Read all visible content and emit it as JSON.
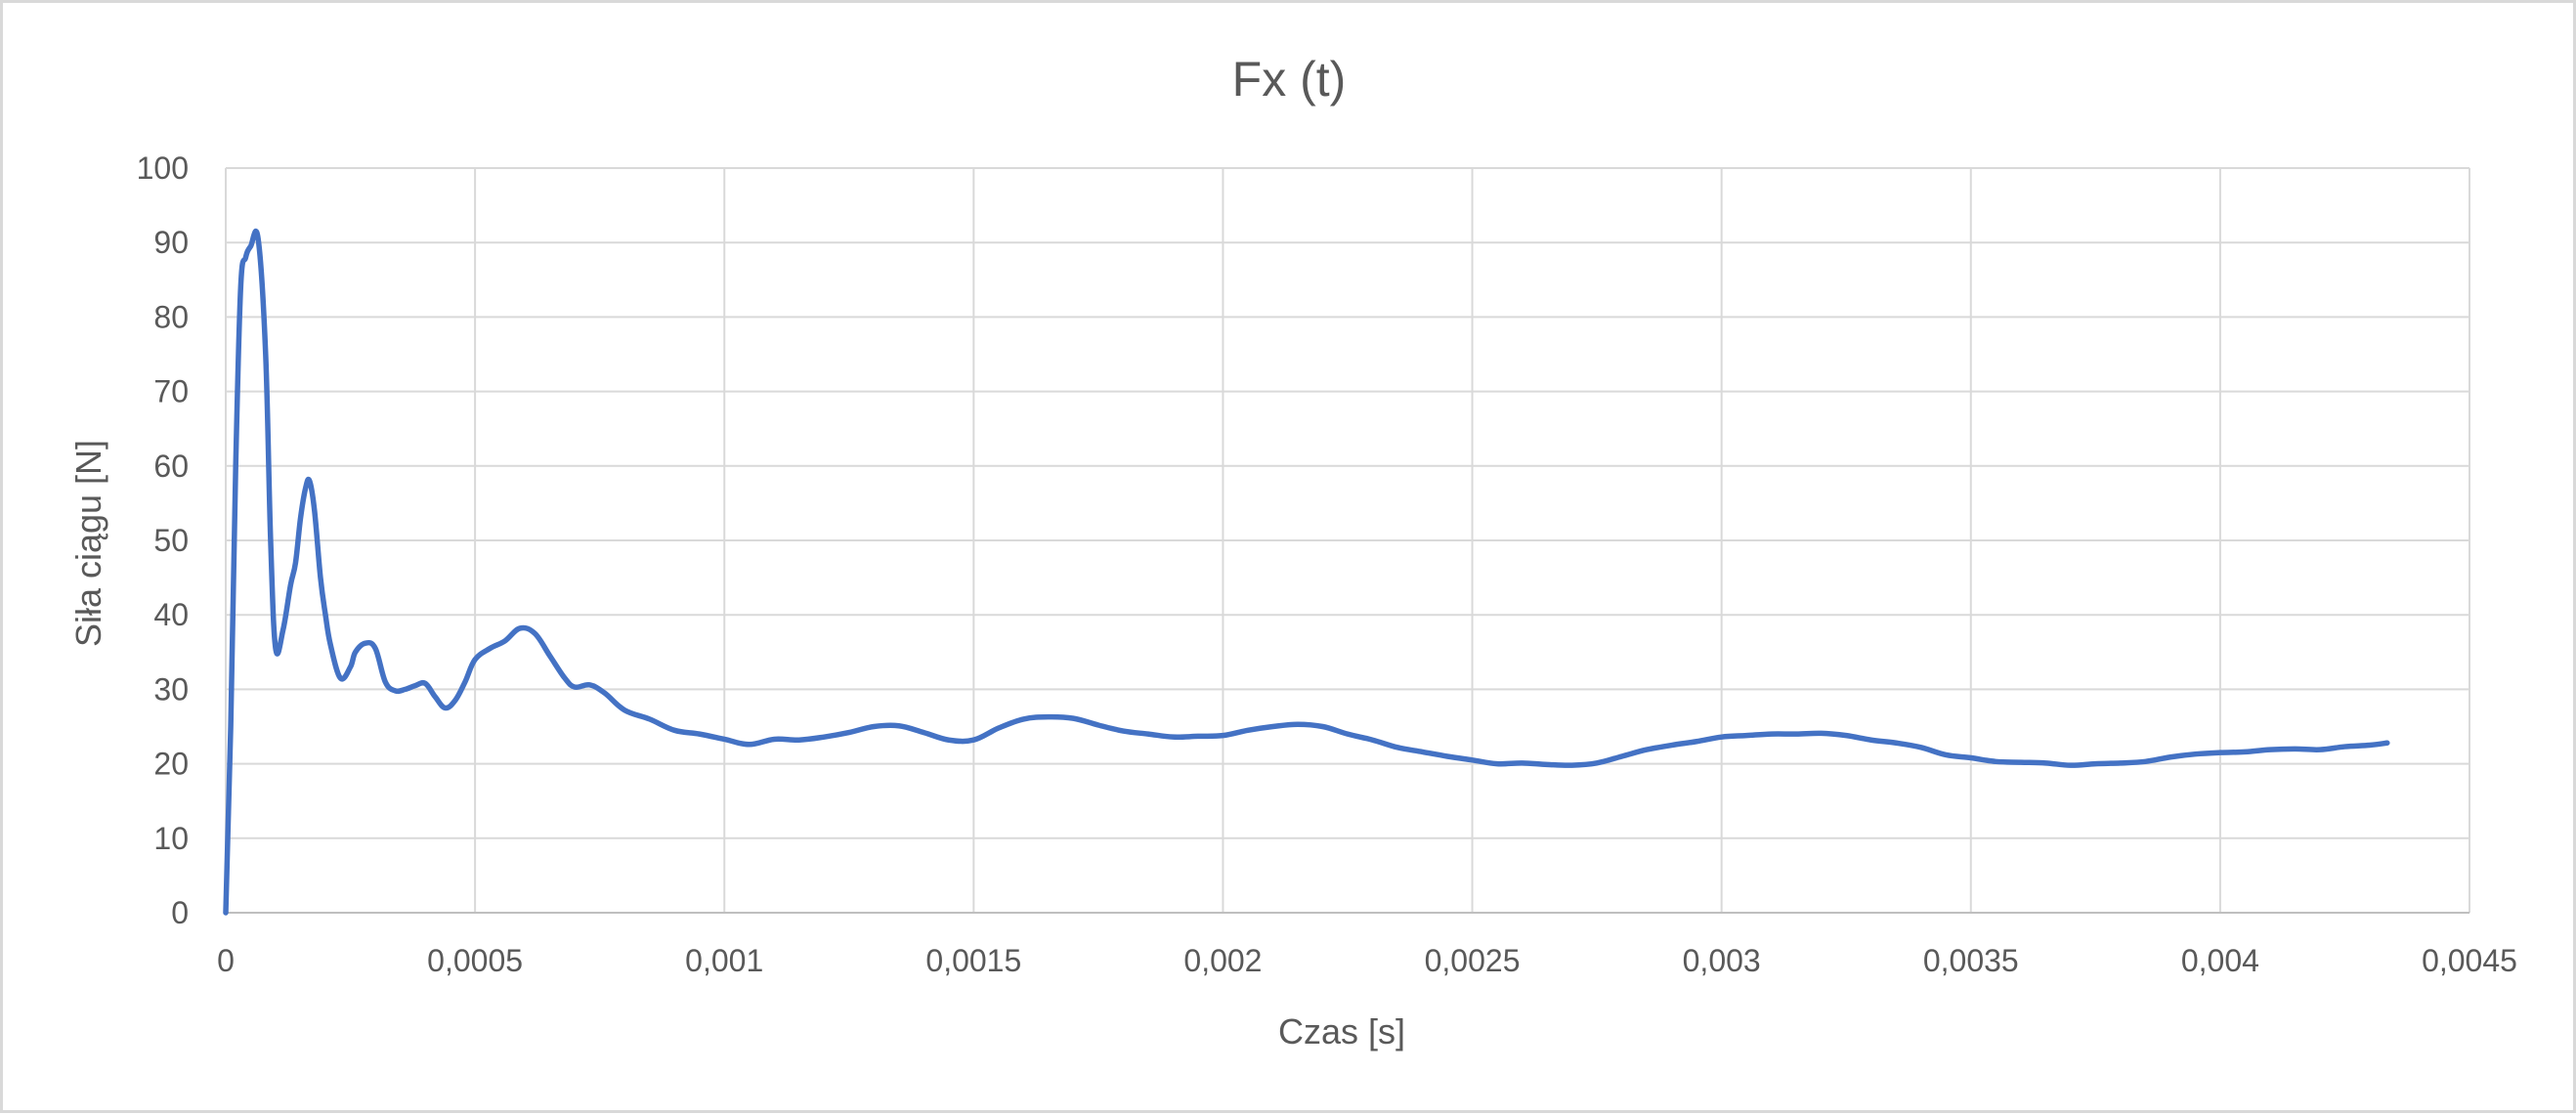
{
  "chart_data": {
    "type": "line",
    "title": "Fx (t)",
    "xlabel": "Czas [s]",
    "ylabel": "Siła ciągu [N]",
    "xlim": [
      0,
      0.0045
    ],
    "ylim": [
      0,
      100
    ],
    "x_ticks": [
      0,
      0.0005,
      0.001,
      0.0015,
      0.002,
      0.0025,
      0.003,
      0.0035,
      0.004,
      0.0045
    ],
    "x_tick_labels": [
      "0",
      "0,0005",
      "0,001",
      "0,0015",
      "0,002",
      "0,0025",
      "0,003",
      "0,0035",
      "0,004",
      "0,0045"
    ],
    "y_ticks": [
      0,
      10,
      20,
      30,
      40,
      50,
      60,
      70,
      80,
      90,
      100
    ],
    "y_tick_labels": [
      "0",
      "10",
      "20",
      "30",
      "40",
      "50",
      "60",
      "70",
      "80",
      "90",
      "100"
    ],
    "grid": true,
    "legend": "none",
    "series": [
      {
        "color": "#4472c4",
        "points": [
          [
            0,
            0
          ],
          [
            1e-05,
            25
          ],
          [
            2e-05,
            60
          ],
          [
            3e-05,
            84
          ],
          [
            4e-05,
            88
          ],
          [
            5e-05,
            89.5
          ],
          [
            6.5e-05,
            90.5
          ],
          [
            8e-05,
            75
          ],
          [
            9e-05,
            50
          ],
          [
            0.0001,
            35.5
          ],
          [
            0.000115,
            38
          ],
          [
            0.00013,
            44
          ],
          [
            0.00014,
            47
          ],
          [
            0.00015,
            53
          ],
          [
            0.00016,
            57
          ],
          [
            0.000168,
            58
          ],
          [
            0.000178,
            54
          ],
          [
            0.00019,
            45
          ],
          [
            0.0002,
            40
          ],
          [
            0.00021,
            36
          ],
          [
            0.00023,
            31.5
          ],
          [
            0.00025,
            33
          ],
          [
            0.00026,
            35
          ],
          [
            0.00028,
            36.2
          ],
          [
            0.0003,
            35.5
          ],
          [
            0.00032,
            31
          ],
          [
            0.00034,
            29.8
          ],
          [
            0.00036,
            30
          ],
          [
            0.00038,
            30.5
          ],
          [
            0.0004,
            30.8
          ],
          [
            0.00042,
            29
          ],
          [
            0.00044,
            27.5
          ],
          [
            0.00046,
            28.5
          ],
          [
            0.00048,
            31
          ],
          [
            0.0005,
            34
          ],
          [
            0.00053,
            35.5
          ],
          [
            0.00056,
            36.5
          ],
          [
            0.00059,
            38.2
          ],
          [
            0.00062,
            37.5
          ],
          [
            0.00065,
            34.5
          ],
          [
            0.00068,
            31.5
          ],
          [
            0.0007,
            30.3
          ],
          [
            0.00073,
            30.6
          ],
          [
            0.00076,
            29.5
          ],
          [
            0.0008,
            27.2
          ],
          [
            0.00085,
            26
          ],
          [
            0.0009,
            24.5
          ],
          [
            0.00095,
            24
          ],
          [
            0.001,
            23.3
          ],
          [
            0.00105,
            22.6
          ],
          [
            0.0011,
            23.3
          ],
          [
            0.00115,
            23.2
          ],
          [
            0.0012,
            23.6
          ],
          [
            0.00125,
            24.2
          ],
          [
            0.0013,
            25
          ],
          [
            0.00135,
            25.1
          ],
          [
            0.0014,
            24.2
          ],
          [
            0.00145,
            23.2
          ],
          [
            0.0015,
            23.2
          ],
          [
            0.00155,
            24.8
          ],
          [
            0.0016,
            26
          ],
          [
            0.00165,
            26.3
          ],
          [
            0.0017,
            26.1
          ],
          [
            0.00175,
            25.2
          ],
          [
            0.0018,
            24.4
          ],
          [
            0.00185,
            24
          ],
          [
            0.0019,
            23.6
          ],
          [
            0.00195,
            23.7
          ],
          [
            0.002,
            23.8
          ],
          [
            0.00205,
            24.5
          ],
          [
            0.0021,
            25
          ],
          [
            0.00215,
            25.3
          ],
          [
            0.0022,
            25
          ],
          [
            0.00225,
            24
          ],
          [
            0.0023,
            23.2
          ],
          [
            0.00235,
            22.2
          ],
          [
            0.0024,
            21.6
          ],
          [
            0.00245,
            21
          ],
          [
            0.0025,
            20.5
          ],
          [
            0.00255,
            20
          ],
          [
            0.0026,
            20.1
          ],
          [
            0.00265,
            19.9
          ],
          [
            0.0027,
            19.8
          ],
          [
            0.00275,
            20.1
          ],
          [
            0.0028,
            21
          ],
          [
            0.00285,
            21.9
          ],
          [
            0.0029,
            22.5
          ],
          [
            0.00295,
            23
          ],
          [
            0.003,
            23.6
          ],
          [
            0.00305,
            23.8
          ],
          [
            0.0031,
            24
          ],
          [
            0.00315,
            24
          ],
          [
            0.0032,
            24.1
          ],
          [
            0.00325,
            23.8
          ],
          [
            0.0033,
            23.2
          ],
          [
            0.00335,
            22.8
          ],
          [
            0.0034,
            22.2
          ],
          [
            0.00345,
            21.2
          ],
          [
            0.0035,
            20.8
          ],
          [
            0.00355,
            20.3
          ],
          [
            0.0036,
            20.2
          ],
          [
            0.00365,
            20.1
          ],
          [
            0.0037,
            19.8
          ],
          [
            0.00375,
            20
          ],
          [
            0.0038,
            20.1
          ],
          [
            0.00385,
            20.3
          ],
          [
            0.0039,
            20.9
          ],
          [
            0.00395,
            21.3
          ],
          [
            0.004,
            21.5
          ],
          [
            0.00405,
            21.6
          ],
          [
            0.0041,
            21.9
          ],
          [
            0.00415,
            22
          ],
          [
            0.0042,
            21.9
          ],
          [
            0.00425,
            22.3
          ],
          [
            0.0043,
            22.5
          ],
          [
            0.004335,
            22.8
          ]
        ]
      }
    ]
  }
}
